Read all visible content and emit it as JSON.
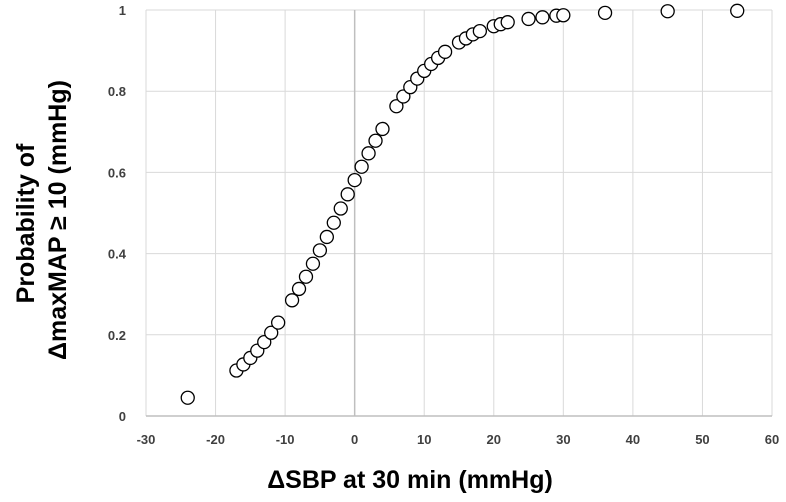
{
  "chart_data": {
    "type": "scatter",
    "xlabel": "ΔSBP at 30 min (mmHg)",
    "ylabel_lines": [
      "Probability of",
      "ΔmaxMAP ≥ 10 (mmHg)"
    ],
    "xlim": [
      -30,
      60
    ],
    "ylim": [
      0,
      1
    ],
    "x_ticks": [
      -30,
      -20,
      -10,
      0,
      10,
      20,
      30,
      40,
      50,
      60
    ],
    "y_ticks": [
      0,
      0.2,
      0.4,
      0.6,
      0.8,
      1
    ],
    "x_tick_labels": [
      "-30",
      "-20",
      "-10",
      "0",
      "10",
      "20",
      "30",
      "40",
      "50",
      "60"
    ],
    "y_tick_labels": [
      "0",
      "0.2",
      "0.4",
      "0.6",
      "0.8",
      "1"
    ],
    "grid": true,
    "colors": {
      "grid": "#d9d9d9",
      "marker_stroke": "#000000",
      "marker_fill": "#ffffff",
      "tick_text": "#404040"
    },
    "series": [
      {
        "x": [
          -24,
          -17,
          -16,
          -15,
          -14,
          -13,
          -12,
          -11,
          -9,
          -8,
          -7,
          -6,
          -5,
          -4,
          -3,
          -2,
          -1,
          0,
          1,
          2,
          3,
          4,
          6,
          7,
          8,
          9,
          10,
          11,
          12,
          13,
          15,
          16,
          17,
          18,
          20,
          21,
          22,
          25,
          27,
          29,
          30,
          36,
          45,
          55
        ],
        "y": [
          0.045,
          0.112,
          0.127,
          0.143,
          0.161,
          0.182,
          0.205,
          0.23,
          0.285,
          0.313,
          0.343,
          0.375,
          0.408,
          0.441,
          0.476,
          0.511,
          0.546,
          0.581,
          0.614,
          0.647,
          0.678,
          0.707,
          0.763,
          0.787,
          0.81,
          0.831,
          0.85,
          0.867,
          0.882,
          0.897,
          0.92,
          0.93,
          0.94,
          0.948,
          0.96,
          0.965,
          0.97,
          0.978,
          0.982,
          0.986,
          0.987,
          0.993,
          0.997,
          0.998
        ]
      }
    ]
  }
}
